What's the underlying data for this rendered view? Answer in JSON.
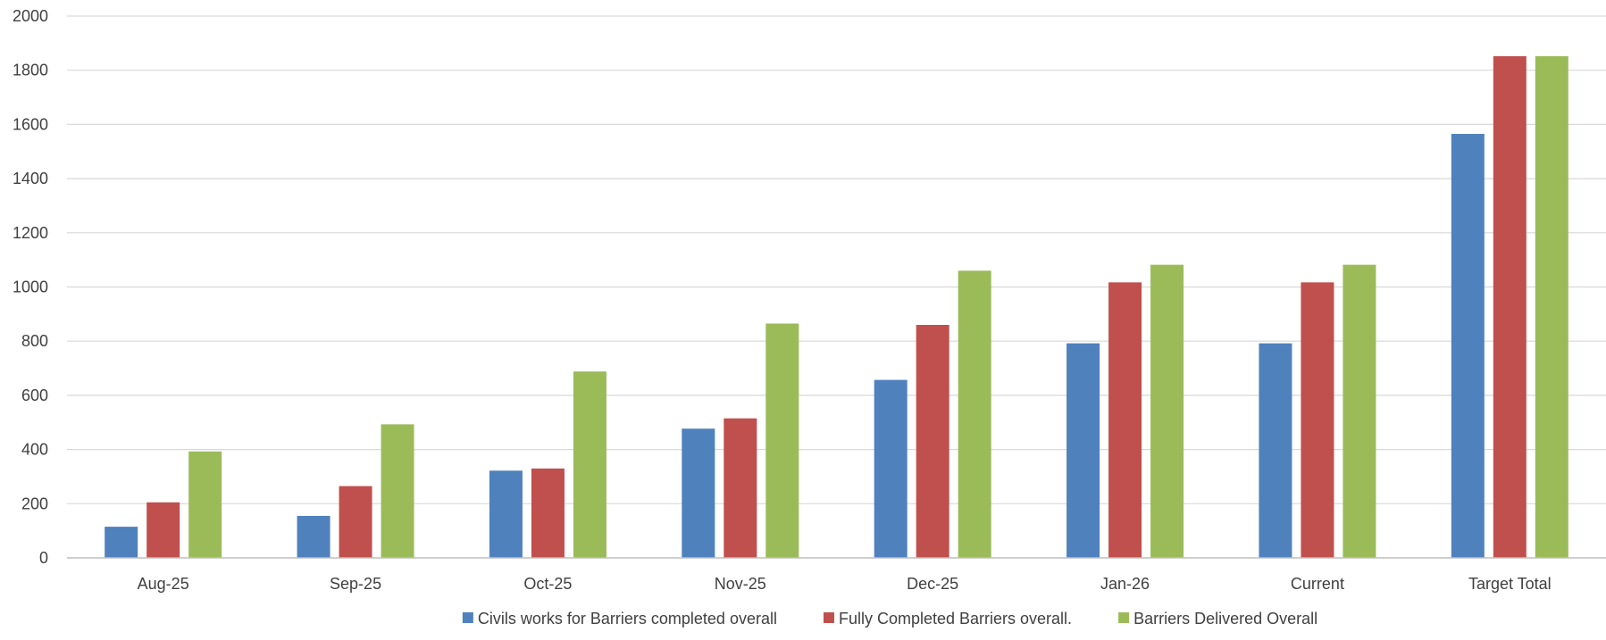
{
  "chart_data": {
    "type": "bar",
    "title": "",
    "xlabel": "",
    "ylabel": "",
    "categories": [
      "Aug-25",
      "Sep-25",
      "Oct-25",
      "Nov-25",
      "Dec-25",
      "Jan-26",
      "Current",
      "Target Total"
    ],
    "ylim": [
      0,
      2000
    ],
    "yticks": [
      0,
      200,
      400,
      600,
      800,
      1000,
      1200,
      1400,
      1600,
      1800,
      2000
    ],
    "ytick_labels": [
      "0",
      "200",
      "400",
      "600",
      "800",
      "1000",
      "1200",
      "1400",
      "1600",
      "1800",
      "2000"
    ],
    "grid": true,
    "legend_position": "bottom",
    "series": [
      {
        "name": "Civils works for Barriers completed overall",
        "color": "#4F81BD",
        "values": [
          115,
          155,
          322,
          477,
          657,
          792,
          792,
          1565
        ]
      },
      {
        "name": "Fully Completed Barriers overall.",
        "color": "#C0504D",
        "values": [
          205,
          265,
          330,
          515,
          860,
          1017,
          1017,
          1852
        ]
      },
      {
        "name": "Barriers Delivered Overall",
        "color": "#9BBB59",
        "values": [
          393,
          493,
          688,
          865,
          1060,
          1082,
          1082,
          1852
        ]
      }
    ]
  }
}
